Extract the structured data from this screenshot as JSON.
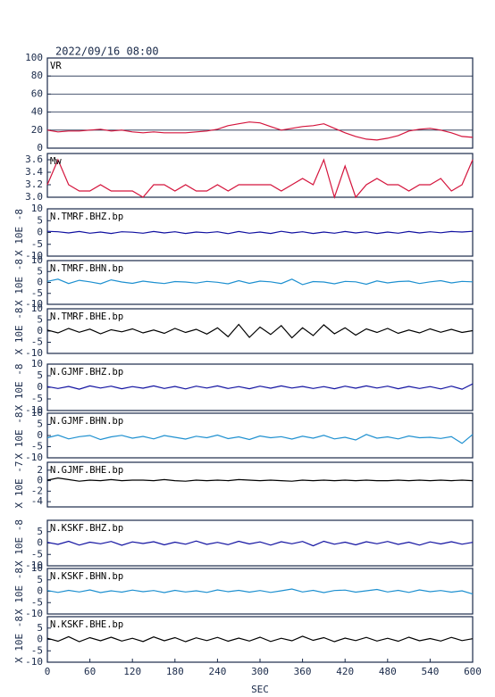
{
  "chart_data": [
    {
      "type": "line",
      "title": "2022/09/16 08:00",
      "series": [
        {
          "name": "VR",
          "color": "#d4143c",
          "values": [
            20,
            18,
            19,
            19,
            20,
            21,
            19,
            20,
            18,
            17,
            18,
            17,
            17,
            17,
            18,
            19,
            21,
            25,
            27,
            29,
            28,
            24,
            20,
            22,
            24,
            25,
            27,
            22,
            17,
            13,
            10,
            9,
            11,
            14,
            19,
            21,
            22,
            20,
            17,
            13,
            12
          ]
        }
      ],
      "x": [
        0,
        15,
        30,
        45,
        60,
        75,
        90,
        105,
        120,
        135,
        150,
        165,
        180,
        195,
        210,
        225,
        240,
        255,
        270,
        285,
        300,
        315,
        330,
        345,
        360,
        375,
        390,
        405,
        420,
        435,
        450,
        465,
        480,
        495,
        510,
        525,
        540,
        555,
        570,
        585,
        600
      ],
      "xlim": [
        0,
        600
      ],
      "ylim": [
        0,
        100
      ],
      "yticks": [
        0,
        20,
        40,
        60,
        80,
        100
      ],
      "grid": true
    },
    {
      "type": "line",
      "series": [
        {
          "name": "Mw",
          "color": "#d4143c",
          "values": [
            3.2,
            3.6,
            3.2,
            3.1,
            3.1,
            3.2,
            3.1,
            3.1,
            3.1,
            3.0,
            3.2,
            3.2,
            3.1,
            3.2,
            3.1,
            3.1,
            3.2,
            3.1,
            3.2,
            3.2,
            3.2,
            3.2,
            3.1,
            3.2,
            3.3,
            3.2,
            3.6,
            3.0,
            3.5,
            3.0,
            3.2,
            3.3,
            3.2,
            3.2,
            3.1,
            3.2,
            3.2,
            3.3,
            3.1,
            3.2,
            3.6
          ]
        }
      ],
      "x": [
        0,
        15,
        30,
        45,
        60,
        75,
        90,
        105,
        120,
        135,
        150,
        165,
        180,
        195,
        210,
        225,
        240,
        255,
        270,
        285,
        300,
        315,
        330,
        345,
        360,
        375,
        390,
        405,
        420,
        435,
        450,
        465,
        480,
        495,
        510,
        525,
        540,
        555,
        570,
        585,
        600
      ],
      "xlim": [
        0,
        600
      ],
      "ylim": [
        3.0,
        3.7
      ],
      "yticks": [
        {
          "value": 3.0,
          "label": "3.0"
        },
        3.2,
        3.4,
        3.6
      ]
    },
    {
      "type": "line",
      "ylabel": "X 10E -8",
      "series": [
        {
          "name": "N.TMRF.BHZ.bp",
          "color": "#1010a0",
          "values": [
            0.5,
            0.3,
            -0.2,
            0.4,
            -0.3,
            0.2,
            -0.4,
            0.3,
            0.1,
            -0.3,
            0.4,
            -0.2,
            0.3,
            -0.4,
            0.2,
            -0.1,
            0.3,
            -0.5,
            0.4,
            -0.3,
            0.2,
            -0.4,
            0.5,
            -0.2,
            0.3,
            -0.4,
            0.2,
            -0.3,
            0.4,
            -0.2,
            0.3,
            -0.4,
            0.2,
            -0.3,
            0.4,
            -0.2,
            0.3,
            -0.1,
            0.4,
            0.2,
            0.5
          ]
        }
      ],
      "x": [
        0,
        15,
        30,
        45,
        60,
        75,
        90,
        105,
        120,
        135,
        150,
        165,
        180,
        195,
        210,
        225,
        240,
        255,
        270,
        285,
        300,
        315,
        330,
        345,
        360,
        375,
        390,
        405,
        420,
        435,
        450,
        465,
        480,
        495,
        510,
        525,
        540,
        555,
        570,
        585,
        600
      ],
      "xlim": [
        0,
        600
      ],
      "ylim": [
        -10,
        10
      ],
      "yticks": [
        -10,
        -5,
        0,
        5,
        10
      ]
    },
    {
      "type": "line",
      "ylabel": "X 10E -8",
      "series": [
        {
          "name": "N.TMRF.BHN.bp",
          "color": "#1e90d0",
          "values": [
            0.5,
            1.5,
            -0.5,
            1.0,
            0.3,
            -0.6,
            1.2,
            0.2,
            -0.4,
            0.6,
            0.0,
            -0.5,
            0.4,
            0.2,
            -0.3,
            0.5,
            0.1,
            -0.6,
            0.8,
            -0.4,
            0.6,
            0.3,
            -0.5,
            1.5,
            -1.0,
            0.4,
            0.2,
            -0.6,
            0.5,
            0.3,
            -0.8,
            0.7,
            -0.2,
            0.4,
            0.6,
            -0.5,
            0.3,
            0.8,
            -0.2,
            0.5,
            0.3
          ]
        }
      ],
      "x": [
        0,
        15,
        30,
        45,
        60,
        75,
        90,
        105,
        120,
        135,
        150,
        165,
        180,
        195,
        210,
        225,
        240,
        255,
        270,
        285,
        300,
        315,
        330,
        345,
        360,
        375,
        390,
        405,
        420,
        435,
        450,
        465,
        480,
        495,
        510,
        525,
        540,
        555,
        570,
        585,
        600
      ],
      "xlim": [
        0,
        600
      ],
      "ylim": [
        -10,
        10
      ],
      "yticks": [
        -10,
        -5,
        0,
        5,
        10
      ]
    },
    {
      "type": "line",
      "ylabel": "X 10E -8",
      "series": [
        {
          "name": "N.TMRF.BHE.bp",
          "color": "#000000",
          "values": [
            0.5,
            -0.8,
            1.2,
            -0.5,
            0.9,
            -1.2,
            0.6,
            -0.3,
            1.0,
            -0.8,
            0.5,
            -1.0,
            1.2,
            -0.6,
            0.8,
            -1.3,
            1.5,
            -2.5,
            3.0,
            -2.8,
            1.8,
            -1.5,
            2.5,
            -3.0,
            1.5,
            -2.0,
            2.8,
            -1.2,
            1.5,
            -1.8,
            1.0,
            -0.6,
            1.2,
            -1.0,
            0.5,
            -0.8,
            1.0,
            -0.5,
            0.8,
            -0.6,
            0.2
          ]
        }
      ],
      "x": [
        0,
        15,
        30,
        45,
        60,
        75,
        90,
        105,
        120,
        135,
        150,
        165,
        180,
        195,
        210,
        225,
        240,
        255,
        270,
        285,
        300,
        315,
        330,
        345,
        360,
        375,
        390,
        405,
        420,
        435,
        450,
        465,
        480,
        495,
        510,
        525,
        540,
        555,
        570,
        585,
        600
      ],
      "xlim": [
        0,
        600
      ],
      "ylim": [
        -10,
        10
      ],
      "yticks": [
        -10,
        -5,
        0,
        5,
        10
      ]
    },
    {
      "type": "line",
      "ylabel": "X 10E -8",
      "series": [
        {
          "name": "N.GJMF.BHZ.bp",
          "color": "#1010a0",
          "values": [
            0.3,
            -0.5,
            0.4,
            -0.8,
            0.6,
            -0.3,
            0.5,
            -0.6,
            0.3,
            -0.4,
            0.6,
            -0.5,
            0.4,
            -0.7,
            0.5,
            -0.3,
            0.6,
            -0.5,
            0.3,
            -0.6,
            0.5,
            -0.4,
            0.6,
            -0.3,
            0.4,
            -0.5,
            0.3,
            -0.6,
            0.5,
            -0.4,
            0.6,
            -0.3,
            0.5,
            -0.6,
            0.4,
            -0.5,
            0.3,
            -0.7,
            0.5,
            -0.8,
            1.5
          ]
        }
      ],
      "x": [
        0,
        15,
        30,
        45,
        60,
        75,
        90,
        105,
        120,
        135,
        150,
        165,
        180,
        195,
        210,
        225,
        240,
        255,
        270,
        285,
        300,
        315,
        330,
        345,
        360,
        375,
        390,
        405,
        420,
        435,
        450,
        465,
        480,
        495,
        510,
        525,
        540,
        555,
        570,
        585,
        600
      ],
      "xlim": [
        0,
        600
      ],
      "ylim": [
        -10,
        10
      ],
      "yticks": [
        -10,
        -5,
        0,
        5,
        10
      ]
    },
    {
      "type": "line",
      "ylabel": "X 10E -8",
      "series": [
        {
          "name": "N.GJMF.BHN.bp",
          "color": "#1e90d0",
          "values": [
            -1.0,
            0.2,
            -1.5,
            -0.5,
            0.0,
            -1.8,
            -0.6,
            0.1,
            -1.2,
            -0.4,
            -1.5,
            0.0,
            -0.8,
            -1.6,
            -0.3,
            -1.0,
            0.2,
            -1.4,
            -0.6,
            -1.8,
            -0.2,
            -1.0,
            -0.5,
            -1.6,
            -0.3,
            -1.2,
            0.1,
            -1.5,
            -0.8,
            -2.0,
            0.5,
            -1.2,
            -0.6,
            -1.5,
            -0.2,
            -1.0,
            -0.8,
            -1.3,
            -0.5,
            -3.5,
            0.5
          ]
        }
      ],
      "x": [
        0,
        15,
        30,
        45,
        60,
        75,
        90,
        105,
        120,
        135,
        150,
        165,
        180,
        195,
        210,
        225,
        240,
        255,
        270,
        285,
        300,
        315,
        330,
        345,
        360,
        375,
        390,
        405,
        420,
        435,
        450,
        465,
        480,
        495,
        510,
        525,
        540,
        555,
        570,
        585,
        600
      ],
      "xlim": [
        0,
        600
      ],
      "ylim": [
        -10,
        10
      ],
      "yticks": [
        -10,
        -5,
        0,
        5,
        10
      ]
    },
    {
      "type": "line",
      "ylabel": "X 10E -7",
      "series": [
        {
          "name": "N.GJMF.BHE.bp",
          "color": "#000000",
          "values": [
            0.1,
            0.5,
            0.2,
            -0.1,
            0.1,
            0.0,
            0.2,
            0.0,
            0.1,
            0.1,
            0.0,
            0.2,
            0.0,
            -0.1,
            0.1,
            0.0,
            0.1,
            0.0,
            0.2,
            0.1,
            0.0,
            0.1,
            0.0,
            -0.1,
            0.1,
            0.0,
            0.1,
            0.0,
            0.1,
            0.0,
            0.1,
            0.0,
            0.0,
            0.1,
            0.0,
            0.1,
            0.0,
            0.1,
            0.0,
            0.1,
            0.0
          ]
        }
      ],
      "x": [
        0,
        15,
        30,
        45,
        60,
        75,
        90,
        105,
        120,
        135,
        150,
        165,
        180,
        195,
        210,
        225,
        240,
        255,
        270,
        285,
        300,
        315,
        330,
        345,
        360,
        375,
        390,
        405,
        420,
        435,
        450,
        465,
        480,
        495,
        510,
        525,
        540,
        555,
        570,
        585,
        600
      ],
      "xlim": [
        0,
        600
      ],
      "ylim": [
        -5,
        3.5
      ],
      "yticks": [
        -4,
        -2,
        0,
        2
      ]
    },
    {
      "type": "line",
      "ylabel": "X 10E -8",
      "series": [
        {
          "name": "N.KSKF.BHZ.bp",
          "color": "#1010a0",
          "values": [
            0.3,
            -0.6,
            0.8,
            -0.9,
            0.4,
            -0.3,
            0.7,
            -1.0,
            0.5,
            -0.2,
            0.6,
            -0.8,
            0.4,
            -0.5,
            0.9,
            -0.6,
            0.3,
            -0.7,
            0.8,
            -0.4,
            0.5,
            -0.9,
            0.6,
            -0.3,
            0.7,
            -1.2,
            0.8,
            -0.5,
            0.4,
            -0.8,
            0.6,
            -0.3,
            0.7,
            -0.6,
            0.4,
            -0.9,
            0.5,
            -0.4,
            0.6,
            -0.5,
            0.3
          ]
        }
      ],
      "x": [
        0,
        15,
        30,
        45,
        60,
        75,
        90,
        105,
        120,
        135,
        150,
        165,
        180,
        195,
        210,
        225,
        240,
        255,
        270,
        285,
        300,
        315,
        330,
        345,
        360,
        375,
        390,
        405,
        420,
        435,
        450,
        465,
        480,
        495,
        510,
        525,
        540,
        555,
        570,
        585,
        600
      ],
      "xlim": [
        0,
        600
      ],
      "ylim": [
        -10,
        10
      ],
      "yticks": [
        -10,
        -5,
        0,
        5
      ]
    },
    {
      "type": "line",
      "ylabel": "X 10E -8",
      "series": [
        {
          "name": "N.KSKF.BHN.bp",
          "color": "#1e90d0",
          "values": [
            0.3,
            -0.5,
            0.4,
            -0.3,
            0.6,
            -0.6,
            0.2,
            -0.4,
            0.5,
            -0.2,
            0.3,
            -0.6,
            0.4,
            -0.3,
            0.2,
            -0.5,
            0.6,
            -0.2,
            0.4,
            -0.4,
            0.3,
            -0.5,
            0.2,
            1.0,
            -0.3,
            0.4,
            -0.6,
            0.3,
            0.5,
            -0.4,
            0.2,
            0.8,
            -0.3,
            0.4,
            -0.5,
            0.6,
            -0.2,
            0.3,
            -0.4,
            0.2,
            -1.2
          ]
        }
      ],
      "x": [
        0,
        15,
        30,
        45,
        60,
        75,
        90,
        105,
        120,
        135,
        150,
        165,
        180,
        195,
        210,
        225,
        240,
        255,
        270,
        285,
        300,
        315,
        330,
        345,
        360,
        375,
        390,
        405,
        420,
        435,
        450,
        465,
        480,
        495,
        510,
        525,
        540,
        555,
        570,
        585,
        600
      ],
      "xlim": [
        0,
        600
      ],
      "ylim": [
        -10,
        10
      ],
      "yticks": [
        -10,
        -5,
        0,
        5,
        10
      ]
    },
    {
      "type": "line",
      "ylabel": "X 10E -8",
      "xlabel": "SEC",
      "series": [
        {
          "name": "N.KSKF.BHE.bp",
          "color": "#000000",
          "values": [
            0.5,
            -0.8,
            1.2,
            -1.0,
            0.8,
            -0.6,
            1.0,
            -0.7,
            0.5,
            -0.9,
            1.1,
            -0.6,
            0.8,
            -1.0,
            0.7,
            -0.5,
            0.9,
            -0.8,
            0.6,
            -0.7,
            1.0,
            -0.9,
            0.5,
            -0.6,
            1.4,
            -0.4,
            0.8,
            -1.0,
            0.6,
            -0.5,
            0.9,
            -0.7,
            0.5,
            -0.8,
            1.0,
            -0.6,
            0.4,
            -0.7,
            0.9,
            -0.5,
            0.3
          ]
        }
      ],
      "x": [
        0,
        15,
        30,
        45,
        60,
        75,
        90,
        105,
        120,
        135,
        150,
        165,
        180,
        195,
        210,
        225,
        240,
        255,
        270,
        285,
        300,
        315,
        330,
        345,
        360,
        375,
        390,
        405,
        420,
        435,
        450,
        465,
        480,
        495,
        510,
        525,
        540,
        555,
        570,
        585,
        600
      ],
      "xlim": [
        0,
        600
      ],
      "ylim": [
        -10,
        10
      ],
      "yticks": [
        -10,
        -5,
        0,
        5
      ],
      "xticks": [
        0,
        60,
        120,
        180,
        240,
        300,
        360,
        420,
        480,
        540,
        600
      ]
    }
  ]
}
